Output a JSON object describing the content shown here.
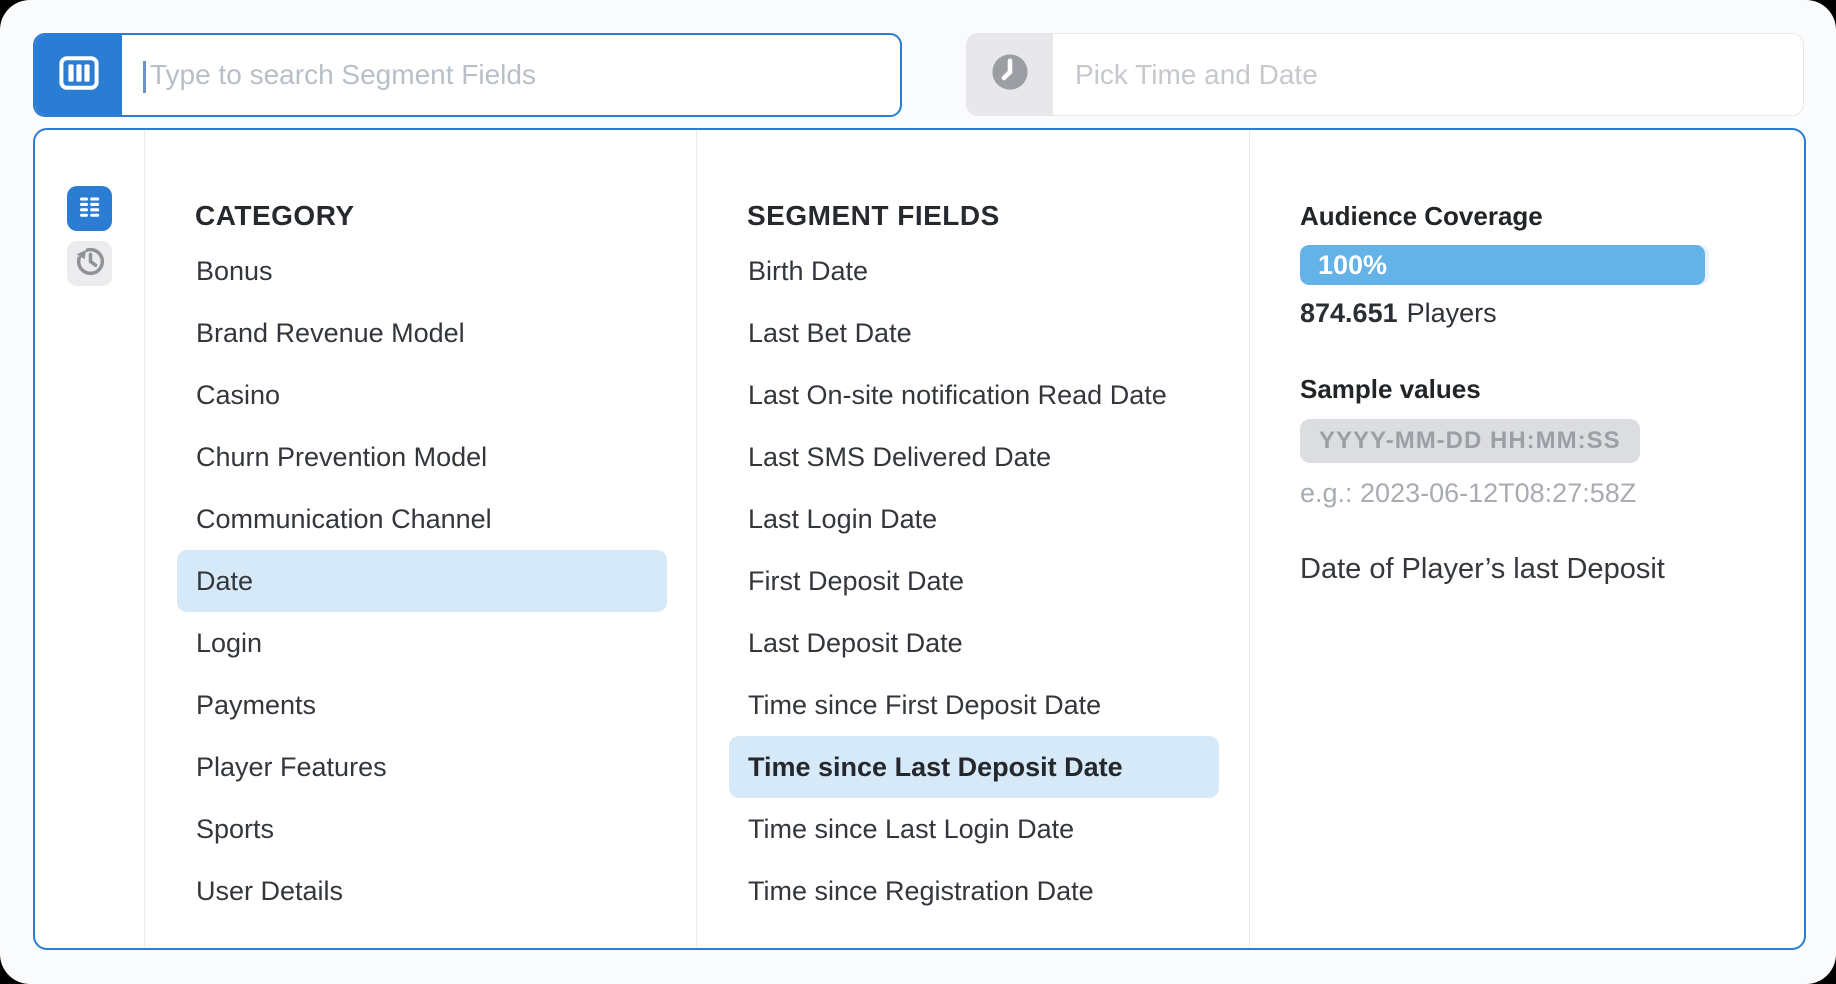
{
  "topbar": {
    "search": {
      "placeholder": "Type to search Segment Fields",
      "icon": "columns-icon"
    },
    "datetime": {
      "placeholder": "Pick Time and Date",
      "icon": "clock-icon"
    }
  },
  "sidebar": {
    "tools": [
      {
        "name": "segment-fields-view",
        "icon": "list-rows-icon",
        "active": true
      },
      {
        "name": "history-view",
        "icon": "history-icon",
        "active": false
      }
    ]
  },
  "category_panel": {
    "header": "CATEGORY",
    "items": [
      {
        "label": "Bonus",
        "selected": false
      },
      {
        "label": "Brand Revenue Model",
        "selected": false
      },
      {
        "label": "Casino",
        "selected": false
      },
      {
        "label": "Churn Prevention Model",
        "selected": false
      },
      {
        "label": "Communication Channel",
        "selected": false
      },
      {
        "label": "Date",
        "selected": true
      },
      {
        "label": "Login",
        "selected": false
      },
      {
        "label": "Payments",
        "selected": false
      },
      {
        "label": "Player Features",
        "selected": false
      },
      {
        "label": "Sports",
        "selected": false
      },
      {
        "label": "User Details",
        "selected": false
      }
    ]
  },
  "segment_panel": {
    "header": "SEGMENT FIELDS",
    "items": [
      {
        "label": "Birth Date",
        "selected": false
      },
      {
        "label": "Last Bet Date",
        "selected": false
      },
      {
        "label": "Last On-site notification Read Date",
        "selected": false
      },
      {
        "label": "Last SMS Delivered Date",
        "selected": false
      },
      {
        "label": "Last Login Date",
        "selected": false
      },
      {
        "label": "First Deposit Date",
        "selected": false
      },
      {
        "label": "Last Deposit Date",
        "selected": false
      },
      {
        "label": "Time since First Deposit Date",
        "selected": false
      },
      {
        "label": "Time since Last Deposit Date",
        "selected": true
      },
      {
        "label": "Time since Last Login Date",
        "selected": false
      },
      {
        "label": "Time since Registration Date",
        "selected": false
      }
    ]
  },
  "details_panel": {
    "audience": {
      "title": "Audience Coverage",
      "coverage_percent": "100%",
      "players_count": "874.651",
      "players_label": "Players"
    },
    "sample": {
      "title": "Sample values",
      "format_chip": "YYYY-MM-DD HH:MM:SS",
      "example": "e.g.: 2023-06-12T08:27:58Z"
    },
    "description": "Date of Player’s last Deposit"
  },
  "colors": {
    "accent_blue": "#2b7dd3",
    "selection_blue": "#d6e9f9",
    "progress_blue": "#63b3e9",
    "chip_bg": "#dcdde0",
    "chip_text": "#9ba0a6"
  }
}
